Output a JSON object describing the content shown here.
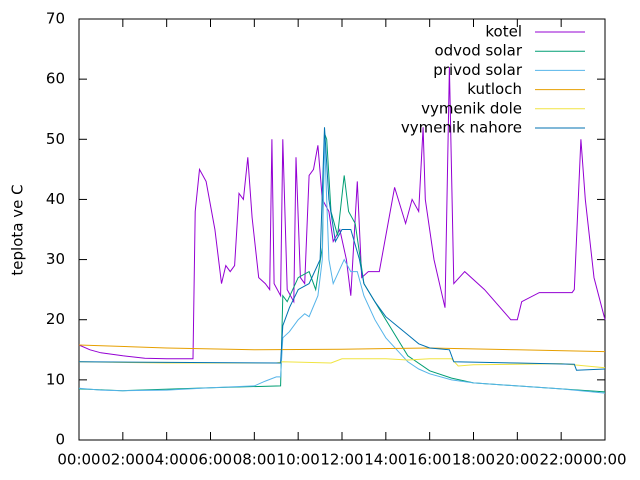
{
  "chart_data": {
    "type": "line",
    "ylabel": "teplota ve C",
    "xlim": [
      0,
      24
    ],
    "xticks": [
      {
        "value": 0,
        "label": "00:00"
      },
      {
        "value": 2,
        "label": "02:00"
      },
      {
        "value": 4,
        "label": "04:00"
      },
      {
        "value": 6,
        "label": "06:00"
      },
      {
        "value": 8,
        "label": "08:00"
      },
      {
        "value": 10,
        "label": "10:00"
      },
      {
        "value": 12,
        "label": "12:00"
      },
      {
        "value": 14,
        "label": "14:00"
      },
      {
        "value": 16,
        "label": "16:00"
      },
      {
        "value": 18,
        "label": "18:00"
      },
      {
        "value": 20,
        "label": "20:00"
      },
      {
        "value": 22,
        "label": "22:00"
      },
      {
        "value": 24,
        "label": "00:00"
      }
    ],
    "ylim": [
      0,
      70
    ],
    "yticks": [
      0,
      10,
      20,
      30,
      40,
      50,
      60,
      70
    ],
    "legend": "top-right",
    "series": [
      {
        "name": "kotel",
        "color": "#9400d3",
        "x": [
          0,
          0.5,
          1,
          2,
          3,
          4,
          5.2,
          5.3,
          5.5,
          5.8,
          6.2,
          6.5,
          6.7,
          6.9,
          7.1,
          7.3,
          7.5,
          7.7,
          7.9,
          8.2,
          8.5,
          8.7,
          8.8,
          8.9,
          9.2,
          9.3,
          9.5,
          9.8,
          9.9,
          10.1,
          10.3,
          10.5,
          10.7,
          10.9,
          11.1,
          11.4,
          11.6,
          11.9,
          12.2,
          12.4,
          12.7,
          12.9,
          13.2,
          13.7,
          14.4,
          14.9,
          15.2,
          15.5,
          15.7,
          15.8,
          16.2,
          16.7,
          16.9,
          17.1,
          17.6,
          18.5,
          19.7,
          20,
          20.2,
          21,
          22.5,
          22.6,
          22.9,
          23.1,
          23.5,
          24
        ],
        "values": [
          15.8,
          15,
          14.5,
          14,
          13.6,
          13.5,
          13.5,
          38,
          45,
          43,
          35,
          26,
          29,
          28,
          29,
          41,
          40,
          47,
          37,
          27,
          26,
          25,
          50,
          26,
          24,
          50,
          25,
          23,
          47,
          27,
          26,
          44,
          45,
          49,
          40,
          38,
          33,
          35,
          30,
          24,
          43,
          27,
          28,
          28,
          42,
          36,
          40,
          38,
          52,
          40,
          30,
          22,
          62,
          26,
          28,
          25,
          20,
          20,
          23,
          24.5,
          24.5,
          25,
          50,
          40,
          27,
          20
        ]
      },
      {
        "name": "odvod solar",
        "color": "#009e73",
        "x": [
          0,
          2,
          6,
          9.2,
          9.3,
          9.5,
          10,
          10.5,
          10.8,
          11.1,
          11.2,
          11.3,
          11.5,
          11.8,
          12.1,
          12.3,
          12.6,
          13,
          14,
          15,
          16,
          17,
          18,
          20,
          22,
          24
        ],
        "values": [
          8.5,
          8.2,
          8.7,
          9,
          24,
          23,
          27,
          28,
          25,
          32,
          51,
          50,
          38,
          34,
          44,
          38,
          36,
          26,
          20,
          14,
          11.5,
          10.3,
          9.5,
          9,
          8.5,
          8
        ]
      },
      {
        "name": "privod solar",
        "color": "#56b4e9",
        "x": [
          0,
          1,
          2,
          4,
          6,
          8,
          8.5,
          9,
          9.2,
          9.3,
          9.6,
          10,
          10.3,
          10.5,
          10.9,
          11.1,
          11.2,
          11.4,
          11.6,
          12.1,
          12.4,
          12.7,
          13,
          13.5,
          14,
          14.5,
          15,
          15.5,
          16,
          17,
          18,
          20,
          22,
          24
        ],
        "values": [
          8.6,
          8.3,
          8.2,
          8.3,
          8.7,
          9,
          9.8,
          10.5,
          10.5,
          17,
          18,
          20,
          21,
          20.5,
          24,
          30,
          50,
          30,
          26,
          30,
          28,
          28,
          24,
          20,
          17,
          15,
          13,
          11.8,
          11,
          10,
          9.5,
          9,
          8.5,
          7.8
        ]
      },
      {
        "name": "kutloch",
        "color": "#e69f00",
        "x": [
          0,
          4,
          8,
          12,
          16,
          20,
          24
        ],
        "values": [
          15.8,
          15.3,
          15,
          15.1,
          15.3,
          15,
          14.7
        ]
      },
      {
        "name": "vymenik dole",
        "color": "#f0e442",
        "x": [
          0,
          4,
          9,
          9.3,
          11.5,
          12,
          14,
          15,
          16,
          17,
          17.3,
          18,
          22,
          24
        ],
        "values": [
          13,
          12.8,
          12.8,
          13,
          12.8,
          13.5,
          13.5,
          13.3,
          13.5,
          13.5,
          12.3,
          12.5,
          12.7,
          12
        ]
      },
      {
        "name": "vymenik nahore",
        "color": "#0072b2",
        "x": [
          0,
          9.2,
          9.3,
          9.6,
          10,
          10.5,
          11,
          11.2,
          11.4,
          11.7,
          12,
          12.4,
          12.8,
          13,
          13.5,
          14,
          14.5,
          15,
          15.5,
          16,
          16.9,
          17.1,
          20,
          22.6,
          22.7,
          24
        ],
        "values": [
          13,
          12.8,
          19,
          22,
          25,
          26,
          30,
          52,
          40,
          33,
          35,
          35,
          30,
          26,
          23,
          20.5,
          19,
          17.5,
          16,
          15.3,
          15,
          13,
          12.8,
          12.6,
          11.6,
          11.8
        ]
      }
    ]
  }
}
